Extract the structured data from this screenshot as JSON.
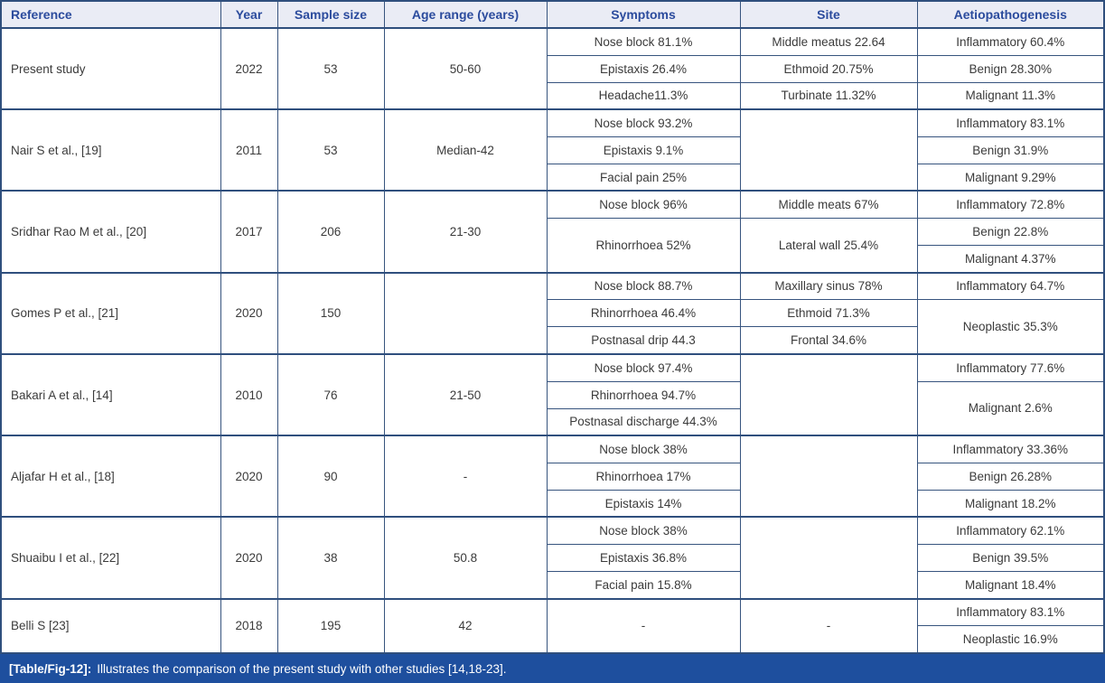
{
  "table": {
    "headers": {
      "reference": "Reference",
      "year": "Year",
      "sample_size": "Sample size",
      "age_range": "Age range (years)",
      "symptoms": "Symptoms",
      "site": "Site",
      "aetiopathogenesis": "Aetiopathogenesis"
    },
    "rows": [
      {
        "reference": "Present study",
        "year": "2022",
        "sample_size": "53",
        "age_range": "50-60",
        "symptoms": [
          "Nose block 81.1%",
          "Epistaxis 26.4%",
          "Headache11.3%"
        ],
        "site": [
          "Middle meatus 22.64",
          "Ethmoid 20.75%",
          "Turbinate 11.32%"
        ],
        "aetiopathogenesis": [
          "Inflammatory 60.4%",
          "Benign 28.30%",
          "Malignant 11.3%"
        ]
      },
      {
        "reference": "Nair S et al., [19]",
        "year": "2011",
        "sample_size": "53",
        "age_range": "Median-42",
        "symptoms": [
          "Nose block 93.2%",
          "Epistaxis 9.1%",
          "Facial pain 25%"
        ],
        "site": [],
        "aetiopathogenesis": [
          "Inflammatory 83.1%",
          "Benign 31.9%",
          "Malignant 9.29%"
        ]
      },
      {
        "reference": "Sridhar Rao M et al., [20]",
        "year": "2017",
        "sample_size": "206",
        "age_range": "21-30",
        "symptoms": [
          "Nose block 96%",
          "Rhinorrhoea 52%"
        ],
        "site": [
          "Middle meats 67%",
          "Lateral wall 25.4%"
        ],
        "aetiopathogenesis": [
          "Inflammatory 72.8%",
          "Benign 22.8%",
          "Malignant 4.37%"
        ]
      },
      {
        "reference": "Gomes P et al., [21]",
        "year": "2020",
        "sample_size": "150",
        "age_range": "",
        "symptoms": [
          "Nose block 88.7%",
          "Rhinorrhoea 46.4%",
          "Postnasal drip 44.3"
        ],
        "site": [
          "Maxillary sinus 78%",
          "Ethmoid 71.3%",
          "Frontal 34.6%"
        ],
        "aetiopathogenesis": [
          "Inflammatory 64.7%",
          "Neoplastic 35.3%"
        ]
      },
      {
        "reference": "Bakari A et al., [14]",
        "year": "2010",
        "sample_size": "76",
        "age_range": "21-50",
        "symptoms": [
          "Nose block 97.4%",
          "Rhinorrhoea 94.7%",
          "Postnasal discharge 44.3%"
        ],
        "site": [],
        "aetiopathogenesis": [
          "Inflammatory 77.6%",
          "Malignant 2.6%"
        ]
      },
      {
        "reference": "Aljafar H et al., [18]",
        "year": "2020",
        "sample_size": "90",
        "age_range": "-",
        "symptoms": [
          "Nose block 38%",
          "Rhinorrhoea 17%",
          "Epistaxis 14%"
        ],
        "site": [],
        "aetiopathogenesis": [
          "Inflammatory 33.36%",
          "Benign 26.28%",
          "Malignant 18.2%"
        ]
      },
      {
        "reference": "Shuaibu I et al., [22]",
        "year": "2020",
        "sample_size": "38",
        "age_range": "50.8",
        "symptoms": [
          "Nose block 38%",
          "Epistaxis 36.8%",
          "Facial pain 15.8%"
        ],
        "site": [],
        "aetiopathogenesis": [
          "Inflammatory 62.1%",
          "Benign 39.5%",
          "Malignant 18.4%"
        ]
      },
      {
        "reference": "Belli S [23]",
        "year": "2018",
        "sample_size": "195",
        "age_range": "42",
        "symptoms": [
          "-"
        ],
        "site": [
          "-"
        ],
        "aetiopathogenesis": [
          "Inflammatory 83.1%",
          "Neoplastic 16.9%"
        ]
      }
    ],
    "caption": {
      "label": "[Table/Fig-12]:",
      "text": "Illustrates the comparison of the present study with other studies [14,18-23]."
    }
  },
  "colors": {
    "border": "#2f4f7d",
    "header_bg": "#eaecf5",
    "header_text": "#2b4b9d",
    "body_text": "#3b3b3b",
    "caption_bg": "#1e4f9e",
    "caption_text": "#ffffff"
  }
}
